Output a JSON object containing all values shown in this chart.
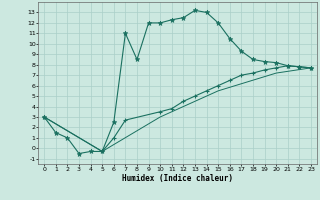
{
  "title": "",
  "xlabel": "Humidex (Indice chaleur)",
  "bg_color": "#cce8e0",
  "grid_color": "#aacfc8",
  "line_color": "#1a7060",
  "xlim": [
    -0.5,
    23.5
  ],
  "ylim": [
    -1.5,
    14
  ],
  "xticks": [
    0,
    1,
    2,
    3,
    4,
    5,
    6,
    7,
    8,
    9,
    10,
    11,
    12,
    13,
    14,
    15,
    16,
    17,
    18,
    19,
    20,
    21,
    22,
    23
  ],
  "yticks": [
    -1,
    0,
    1,
    2,
    3,
    4,
    5,
    6,
    7,
    8,
    9,
    10,
    11,
    12,
    13
  ],
  "curve1_x": [
    0,
    1,
    2,
    3,
    4,
    5,
    6,
    7,
    8,
    9,
    10,
    11,
    12,
    13,
    14,
    15,
    16,
    17,
    18,
    19,
    20,
    21,
    22,
    23
  ],
  "curve1_y": [
    3.0,
    1.5,
    1.0,
    -0.5,
    -0.3,
    -0.3,
    2.5,
    11.0,
    8.5,
    12.0,
    12.0,
    12.3,
    12.5,
    13.2,
    13.0,
    12.0,
    10.5,
    9.3,
    8.5,
    8.3,
    8.2,
    7.9,
    7.8,
    7.7
  ],
  "curve2_x": [
    0,
    5,
    6,
    7,
    10,
    11,
    12,
    13,
    14,
    15,
    16,
    17,
    18,
    19,
    20,
    21,
    22,
    23
  ],
  "curve2_y": [
    3.0,
    -0.3,
    1.0,
    2.7,
    3.5,
    3.8,
    4.5,
    5.0,
    5.5,
    6.0,
    6.5,
    7.0,
    7.2,
    7.5,
    7.7,
    7.9,
    7.8,
    7.7
  ],
  "curve3_x": [
    0,
    5,
    10,
    15,
    20,
    23
  ],
  "curve3_y": [
    3.0,
    -0.3,
    3.0,
    5.5,
    7.2,
    7.7
  ]
}
